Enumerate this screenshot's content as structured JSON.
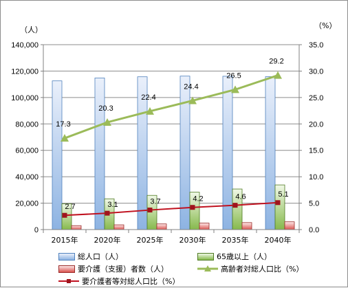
{
  "chart_data": {
    "type": "bar",
    "categories": [
      "2015年",
      "2020年",
      "2025年",
      "2030年",
      "2035年",
      "2040年"
    ],
    "y_left": {
      "unit_label": "（人）",
      "ylim": [
        0,
        140000
      ],
      "ticks": [
        "0",
        "20,000",
        "40,000",
        "60,000",
        "80,000",
        "100,000",
        "120,000",
        "140,000"
      ]
    },
    "y_right": {
      "unit_label": "（%）",
      "ylim": [
        0,
        35
      ],
      "ticks": [
        "0.0",
        "5.0",
        "10.0",
        "15.0",
        "20.0",
        "25.0",
        "30.0",
        "35.0"
      ]
    },
    "grid": true,
    "legend_position": "bottom",
    "series": [
      {
        "name": "総人口（人）",
        "type": "bar",
        "axis": "left",
        "color": "#4f81bd",
        "values": [
          112600,
          114800,
          115700,
          116200,
          116100,
          115800
        ]
      },
      {
        "name": "65歳以上（人）",
        "type": "bar",
        "axis": "left",
        "color": "#77a33a",
        "values": [
          19500,
          23300,
          25900,
          28300,
          30700,
          33800
        ]
      },
      {
        "name": "要介護（支援）者数（人）",
        "type": "bar",
        "axis": "left",
        "color": "#c0504d",
        "values": [
          3000,
          3600,
          4300,
          4900,
          5300,
          5900
        ]
      },
      {
        "name": "高齢者対総人口比（%）",
        "type": "line",
        "axis": "right",
        "color": "#9bbb59",
        "marker": "triangle",
        "values": [
          17.3,
          20.3,
          22.4,
          24.4,
          26.5,
          29.2
        ],
        "labels": [
          "17.3",
          "20.3",
          "22.4",
          "24.4",
          "26.5",
          "29.2"
        ]
      },
      {
        "name": "要介護者等対総人口比（%）",
        "type": "line",
        "axis": "right",
        "color": "#c0111f",
        "marker": "square",
        "values": [
          2.7,
          3.1,
          3.7,
          4.2,
          4.6,
          5.1
        ],
        "labels": [
          "2.7",
          "3.1",
          "3.7",
          "4.2",
          "4.6",
          "5.1"
        ]
      }
    ]
  }
}
